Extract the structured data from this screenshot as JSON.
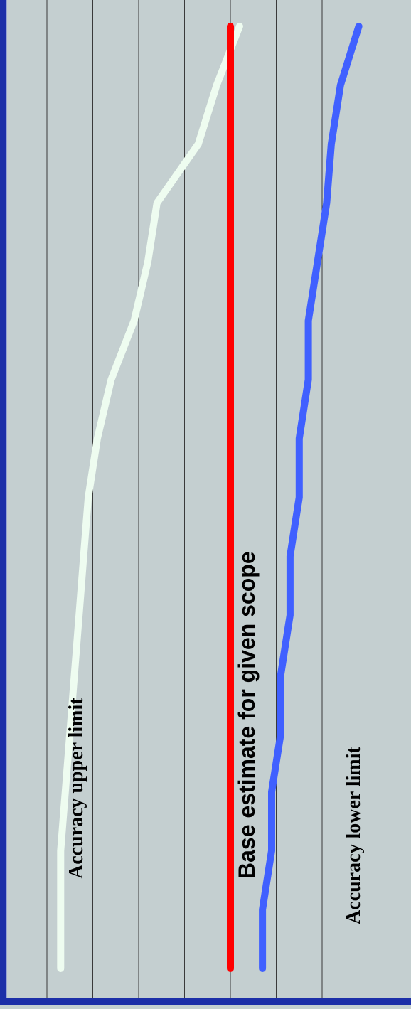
{
  "chart_data": {
    "type": "line",
    "title": "",
    "xlabel": "",
    "ylabel": "",
    "x": [
      0,
      1,
      2,
      3,
      4,
      5,
      6,
      7,
      8,
      9,
      10,
      11,
      12,
      13,
      14,
      15,
      16
    ],
    "grid": true,
    "legend": "none",
    "series": [
      {
        "label": "Accuracy upper limit",
        "color": "#eefcf0",
        "values": [
          7.7,
          7.7,
          7.7,
          7.6,
          7.5,
          7.4,
          7.3,
          7.2,
          7.1,
          6.9,
          6.6,
          6.1,
          5.8,
          5.6,
          4.7,
          4.3,
          3.8
        ]
      },
      {
        "label": "Base estimate for given scope",
        "color": "#ff0000",
        "values": [
          4.0,
          4.0,
          4.0,
          4.0,
          4.0,
          4.0,
          4.0,
          4.0,
          4.0,
          4.0,
          4.0,
          4.0,
          4.0,
          4.0,
          4.0,
          4.0,
          4.0
        ]
      },
      {
        "label": "Accuracy lower limit",
        "color": "#4060ff",
        "values": [
          3.3,
          3.3,
          3.1,
          3.1,
          2.9,
          2.9,
          2.7,
          2.7,
          2.5,
          2.5,
          2.3,
          2.3,
          2.1,
          1.9,
          1.8,
          1.6,
          1.2
        ]
      }
    ],
    "annotations": [
      "Accuracy upper limit",
      "Base estimate for given scope",
      "Accuracy lower limit"
    ]
  }
}
